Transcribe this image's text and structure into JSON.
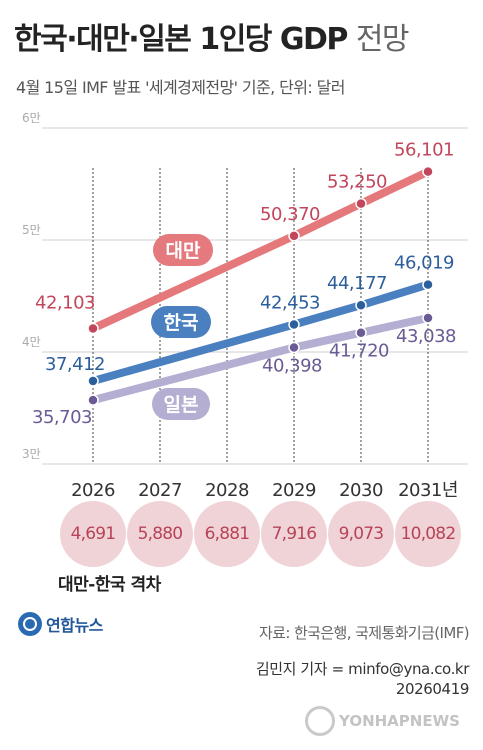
{
  "header": {
    "title": "한국·대만·일본 1인당 GDP",
    "title_suffix": "전망",
    "subtitle": "4월 15일 IMF 발표 '세계경제전망' 기준, 단위: 달러"
  },
  "chart_data": {
    "type": "line",
    "categories": [
      "2026",
      "2027",
      "2028",
      "2029",
      "2030",
      "2031년"
    ],
    "x": [
      2026,
      2027,
      2028,
      2029,
      2030,
      2031
    ],
    "ylim": [
      30000,
      60000
    ],
    "yticks": [
      30000,
      40000,
      50000,
      60000
    ],
    "ytick_labels": [
      "3만",
      "4만",
      "5만",
      "6만"
    ],
    "grid": true,
    "series": [
      {
        "name": "대만",
        "color": "#e4787b",
        "marker_color": "#c2465c",
        "x": [
          2026,
          2029,
          2030,
          2031
        ],
        "values": [
          42103,
          50370,
          53250,
          56101
        ],
        "labels": [
          "42,103",
          "50,370",
          "53,250",
          "56,101"
        ]
      },
      {
        "name": "한국",
        "color": "#4a7fc0",
        "marker_color": "#2d5f9c",
        "x": [
          2026,
          2029,
          2030,
          2031
        ],
        "values": [
          37412,
          42453,
          44177,
          46019
        ],
        "labels": [
          "37,412",
          "42,453",
          "44,177",
          "46,019"
        ]
      },
      {
        "name": "일본",
        "color": "#b3aed2",
        "marker_color": "#6b5b94",
        "x": [
          2026,
          2029,
          2030,
          2031
        ],
        "values": [
          35703,
          40398,
          41720,
          43038
        ],
        "labels": [
          "35,703",
          "40,398",
          "41,720",
          "43,038"
        ]
      }
    ],
    "gap": {
      "title": "대만-한국 격차",
      "values": [
        4691,
        5880,
        6881,
        7916,
        9073,
        10082
      ],
      "labels": [
        "4,691",
        "5,880",
        "6,881",
        "7,916",
        "9,073",
        "10,082"
      ]
    }
  },
  "footer": {
    "logo": "연합뉴스",
    "source": "자료: 한국은행, 국제통화기금(IMF)",
    "byline_line1": "김민지 기자 = minfo@yna.co.kr",
    "byline_line2": "20260419",
    "watermark": "YONHAPNEWS"
  }
}
